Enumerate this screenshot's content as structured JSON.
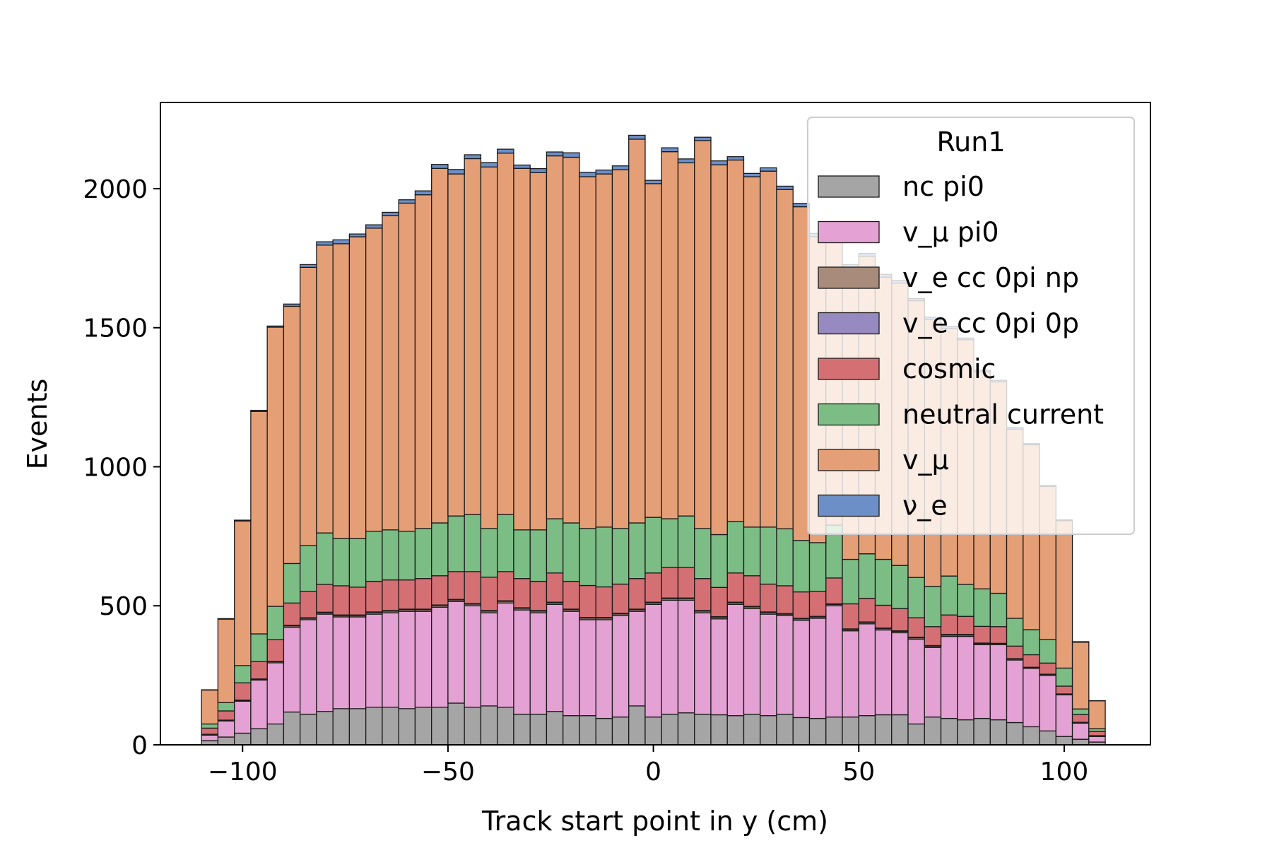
{
  "chart_data": {
    "type": "bar",
    "stacked": true,
    "title": "",
    "xlabel": "Track start point in y (cm)",
    "ylabel": "Events",
    "xlim": [
      -120,
      121
    ],
    "ylim": [
      0,
      2310
    ],
    "xticks": [
      -100,
      -50,
      0,
      50,
      100
    ],
    "xtick_labels": [
      "−100",
      "−50",
      "0",
      "50",
      "100"
    ],
    "yticks": [
      0,
      500,
      1000,
      1500,
      2000
    ],
    "ytick_labels": [
      "0",
      "500",
      "1000",
      "1500",
      "2000"
    ],
    "grid": false,
    "bin_edges": [
      -110,
      -106,
      -102,
      -98,
      -94,
      -90,
      -86,
      -82,
      -78,
      -74,
      -70,
      -66,
      -62,
      -58,
      -54,
      -50,
      -46,
      -42,
      -38,
      -34,
      -30,
      -26,
      -22,
      -18,
      -14,
      -10,
      -6,
      -2,
      2,
      6,
      10,
      14,
      18,
      22,
      26,
      30,
      34,
      38,
      42,
      46,
      50,
      54,
      58,
      62,
      66,
      70,
      74,
      78,
      82,
      86,
      90,
      94,
      98,
      102,
      106,
      110
    ],
    "legend": {
      "title": "Run1",
      "position": "top-right",
      "entries": [
        "nc pi0",
        "v_μ pi0",
        "v_e cc 0pi np",
        "v_e cc 0pi 0p",
        "cosmic",
        "neutral current",
        "v_μ",
        "ν_e"
      ]
    },
    "series": [
      {
        "name": "nc pi0",
        "color": "#a5a5a5",
        "values": [
          15,
          28,
          42,
          58,
          75,
          118,
          110,
          120,
          130,
          130,
          135,
          135,
          130,
          135,
          135,
          150,
          135,
          140,
          135,
          110,
          110,
          120,
          105,
          105,
          95,
          100,
          140,
          100,
          110,
          115,
          110,
          108,
          105,
          110,
          105,
          110,
          98,
          95,
          100,
          100,
          105,
          108,
          108,
          75,
          100,
          95,
          90,
          95,
          90,
          80,
          65,
          50,
          30,
          20,
          10
        ]
      },
      {
        "name": "v_μ pi0",
        "color": "#e3a2d3",
        "values": [
          20,
          58,
          115,
          175,
          220,
          305,
          340,
          350,
          330,
          330,
          335,
          340,
          350,
          345,
          360,
          365,
          365,
          335,
          375,
          375,
          365,
          385,
          375,
          345,
          355,
          365,
          340,
          405,
          410,
          405,
          365,
          345,
          400,
          380,
          365,
          355,
          350,
          360,
          400,
          310,
          330,
          305,
          295,
          305,
          250,
          295,
          300,
          265,
          270,
          225,
          210,
          200,
          150,
          58,
          20
        ]
      },
      {
        "name": "v_e cc 0pi np",
        "color": "#a88b7a",
        "values": [
          2,
          2,
          3,
          3,
          4,
          5,
          5,
          5,
          5,
          5,
          6,
          6,
          6,
          6,
          6,
          6,
          6,
          6,
          6,
          6,
          6,
          6,
          6,
          6,
          6,
          6,
          6,
          6,
          6,
          6,
          6,
          6,
          6,
          6,
          6,
          5,
          5,
          5,
          5,
          5,
          5,
          5,
          5,
          5,
          5,
          5,
          5,
          4,
          4,
          4,
          3,
          3,
          2,
          2,
          2
        ]
      },
      {
        "name": "v_e cc 0pi 0p",
        "color": "#968ac1",
        "values": [
          1,
          1,
          1,
          1,
          1,
          2,
          2,
          2,
          2,
          2,
          2,
          2,
          2,
          2,
          2,
          2,
          2,
          2,
          2,
          2,
          2,
          2,
          2,
          2,
          2,
          2,
          2,
          2,
          2,
          2,
          2,
          2,
          2,
          2,
          2,
          2,
          2,
          2,
          2,
          2,
          2,
          2,
          2,
          2,
          2,
          2,
          2,
          2,
          1,
          1,
          1,
          1,
          1,
          1,
          1
        ]
      },
      {
        "name": "cosmic",
        "color": "#d47074",
        "values": [
          22,
          33,
          62,
          62,
          78,
          80,
          95,
          100,
          105,
          100,
          110,
          110,
          105,
          110,
          105,
          100,
          115,
          120,
          105,
          105,
          105,
          105,
          100,
          115,
          110,
          105,
          110,
          105,
          110,
          110,
          115,
          105,
          105,
          110,
          100,
          100,
          95,
          90,
          93,
          90,
          85,
          82,
          80,
          70,
          68,
          70,
          65,
          60,
          60,
          45,
          45,
          40,
          28,
          28,
          15
        ]
      },
      {
        "name": "neutral current",
        "color": "#7cbd85",
        "values": [
          15,
          30,
          62,
          100,
          120,
          142,
          165,
          185,
          170,
          175,
          180,
          180,
          175,
          180,
          190,
          200,
          205,
          175,
          205,
          175,
          185,
          195,
          210,
          205,
          215,
          200,
          200,
          200,
          175,
          185,
          180,
          190,
          185,
          175,
          205,
          205,
          185,
          175,
          190,
          160,
          160,
          165,
          155,
          145,
          145,
          140,
          115,
          135,
          120,
          100,
          90,
          85,
          65,
          20,
          10
        ]
      },
      {
        "name": "v_μ",
        "color": "#e59f76",
        "values": [
          122,
          300,
          520,
          800,
          1004,
          925,
          1000,
          1035,
          1060,
          1085,
          1090,
          1130,
          1180,
          1200,
          1275,
          1230,
          1280,
          1300,
          1300,
          1300,
          1285,
          1305,
          1315,
          1265,
          1270,
          1290,
          1380,
          1200,
          1320,
          1270,
          1395,
          1330,
          1300,
          1260,
          1280,
          1220,
          1200,
          1100,
          1050,
          1050,
          1070,
          1015,
          1015,
          995,
          960,
          890,
          880,
          780,
          760,
          680,
          665,
          550,
          530,
          240,
          100
        ]
      },
      {
        "name": "ν_e",
        "color": "#6d8fc8",
        "values": [
          1,
          2,
          3,
          4,
          4,
          8,
          10,
          12,
          14,
          10,
          12,
          12,
          12,
          14,
          14,
          16,
          14,
          16,
          14,
          12,
          14,
          14,
          16,
          16,
          14,
          14,
          14,
          12,
          14,
          14,
          12,
          14,
          12,
          12,
          12,
          12,
          12,
          12,
          10,
          10,
          10,
          10,
          10,
          8,
          8,
          8,
          6,
          6,
          6,
          6,
          4,
          4,
          3,
          2,
          1
        ]
      }
    ]
  }
}
